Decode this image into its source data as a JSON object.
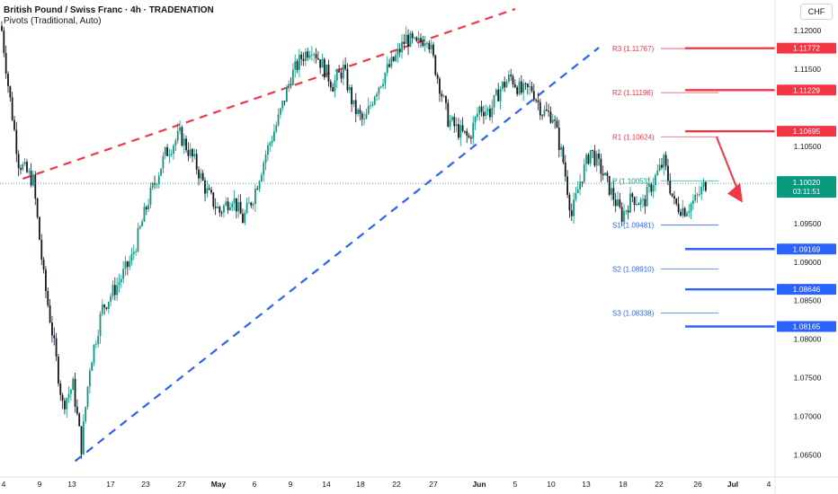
{
  "header": {
    "title": "British Pound / Swiss Franc · 4h · TRADENATION",
    "indicator": "Pivots (Traditional, Auto)",
    "currency": "CHF"
  },
  "price_badge": {
    "price": "1.10020",
    "countdown": "03:11:51"
  },
  "colors": {
    "up": "#089981",
    "down": "#131722",
    "resistance": "#f23645",
    "support": "#2962ff",
    "background": "#ffffff"
  },
  "chart_data": {
    "type": "candlestick",
    "title": "British Pound / Swiss Franc · 4h · TRADENATION",
    "ylim": [
      1.0625,
      1.1235
    ],
    "x_tick_labels": [
      "4",
      "9",
      "13",
      "17",
      "23",
      "27",
      "May",
      "6",
      "9",
      "14",
      "18",
      "22",
      "27",
      "Jun",
      "5",
      "10",
      "13",
      "18",
      "22",
      "26",
      "Jul",
      "4"
    ],
    "y_tick_labels": [
      "1.12000",
      "1.11500",
      "1.10500",
      "1.09500",
      "1.09000",
      "1.08500",
      "1.08000",
      "1.07500",
      "1.07000",
      "1.06500"
    ],
    "candle_path_keypoints": [
      [
        0,
        1.12
      ],
      [
        3,
        1.113
      ],
      [
        8,
        1.103
      ],
      [
        15,
        1.1005
      ],
      [
        20,
        1.088
      ],
      [
        24,
        1.081
      ],
      [
        29,
        1.0715
      ],
      [
        34,
        1.074
      ],
      [
        38,
        1.066
      ],
      [
        42,
        1.0765
      ],
      [
        48,
        1.084
      ],
      [
        55,
        1.087
      ],
      [
        62,
        1.0905
      ],
      [
        70,
        1.098
      ],
      [
        78,
        1.104
      ],
      [
        85,
        1.1065
      ],
      [
        92,
        1.103
      ],
      [
        98,
        1.099
      ],
      [
        104,
        1.0965
      ],
      [
        110,
        1.0985
      ],
      [
        115,
        1.0955
      ],
      [
        120,
        1.0985
      ],
      [
        126,
        1.104
      ],
      [
        132,
        1.1085
      ],
      [
        138,
        1.114
      ],
      [
        143,
        1.1165
      ],
      [
        148,
        1.118
      ],
      [
        153,
        1.1155
      ],
      [
        158,
        1.113
      ],
      [
        163,
        1.115
      ],
      [
        168,
        1.11
      ],
      [
        173,
        1.108
      ],
      [
        178,
        1.112
      ],
      [
        183,
        1.1145
      ],
      [
        188,
        1.1165
      ],
      [
        193,
        1.119
      ],
      [
        198,
        1.118
      ],
      [
        203,
        1.1195
      ],
      [
        208,
        1.114
      ],
      [
        213,
        1.1085
      ],
      [
        218,
        1.107
      ],
      [
        223,
        1.106
      ],
      [
        228,
        1.11
      ],
      [
        233,
        1.1095
      ],
      [
        238,
        1.1125
      ],
      [
        243,
        1.114
      ],
      [
        248,
        1.112
      ],
      [
        253,
        1.1125
      ],
      [
        258,
        1.1095
      ],
      [
        263,
        1.109
      ],
      [
        268,
        1.103
      ],
      [
        272,
        1.096
      ],
      [
        276,
        1.1005
      ],
      [
        281,
        1.1045
      ],
      [
        286,
        1.102
      ],
      [
        291,
        1.099
      ],
      [
        296,
        1.096
      ],
      [
        301,
        1.0985
      ],
      [
        306,
        1.0975
      ],
      [
        311,
        1.1005
      ],
      [
        316,
        1.103
      ],
      [
        321,
        1.0975
      ],
      [
        326,
        1.0968
      ],
      [
        331,
        1.098
      ],
      [
        336,
        1.1002
      ]
    ],
    "series": [
      {
        "name": "R3 (1.11767)",
        "value": 1.11767
      },
      {
        "name": "R2 (1.11196)",
        "value": 1.11196
      },
      {
        "name": "R1 (1.10624)",
        "value": 1.10624
      },
      {
        "name": "P (1.10053)",
        "value": 1.10053
      },
      {
        "name": "S1 (1.09481)",
        "value": 1.09481
      },
      {
        "name": "S2 (1.08910)",
        "value": 1.0891
      },
      {
        "name": "S3 (1.08338)",
        "value": 1.08338
      }
    ],
    "levels": [
      {
        "label": "1.11772",
        "value": 1.11772,
        "kind": "resistance"
      },
      {
        "label": "1.11229",
        "value": 1.11229,
        "kind": "resistance"
      },
      {
        "label": "1.10695",
        "value": 1.10695,
        "kind": "resistance"
      },
      {
        "label": "1.09169",
        "value": 1.09169,
        "kind": "support"
      },
      {
        "label": "1.08646",
        "value": 1.08646,
        "kind": "support"
      },
      {
        "label": "1.08165",
        "value": 1.08165,
        "kind": "support"
      }
    ],
    "trendlines": [
      {
        "kind": "resistance",
        "from": [
          10,
          1.1008
        ],
        "to": [
          245,
          1.1228
        ]
      },
      {
        "kind": "support",
        "from": [
          35,
          1.0642
        ],
        "to": [
          285,
          1.1178
        ]
      }
    ],
    "current_price": 1.1002,
    "forecast_arrow": {
      "from": [
        400,
        1.1062
      ],
      "to": [
        412,
        1.0998
      ],
      "color": "#f23645"
    }
  }
}
